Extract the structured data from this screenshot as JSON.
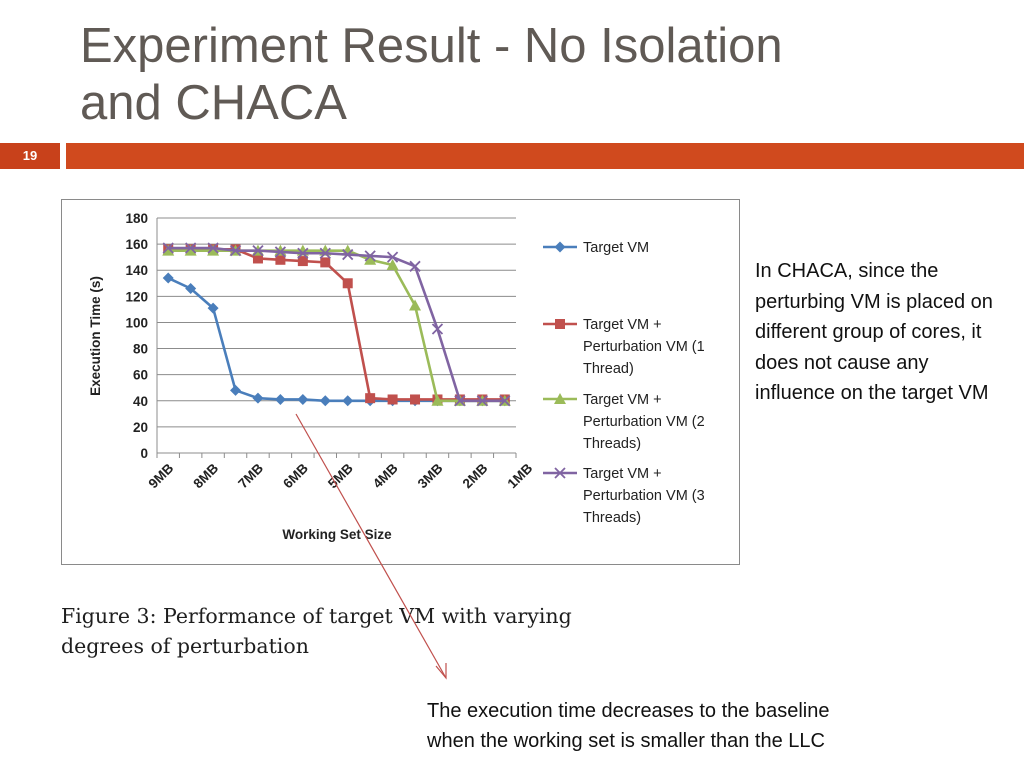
{
  "slide": {
    "title_lines": [
      "Experiment Result - No Isolation",
      "and CHACA"
    ],
    "slide_number": "19",
    "accent_color": "#d04a1e"
  },
  "figure_caption": {
    "lines": [
      "Figure 3:  Performance of target VM with varying",
      "degrees of perturbation"
    ]
  },
  "notes": {
    "right_text": "In CHACA, since the perturbing VM is placed on different group of cores, it does not cause any influence on the target VM",
    "bottom_lines": [
      "The execution time decreases to the baseline",
      "when the working set is smaller than the LLC"
    ]
  },
  "chart_data": {
    "type": "line",
    "title": "",
    "xlabel": "Working Set Size",
    "ylabel": "Execution Time (s)",
    "ylim": [
      0,
      180
    ],
    "yticks": [
      0,
      20,
      40,
      60,
      80,
      100,
      120,
      140,
      160,
      180
    ],
    "grid": true,
    "legend_position": "right",
    "x_tick_labels": [
      "9MB",
      "8MB",
      "7MB",
      "6MB",
      "5MB",
      "4MB",
      "3MB",
      "2MB",
      "1MB"
    ],
    "x_points": 16,
    "series": [
      {
        "name": "Target VM",
        "legend_lines": [
          "Target VM"
        ],
        "color": "#4a7ebb",
        "marker": "diamond",
        "values": [
          134,
          126,
          111,
          48,
          42,
          41,
          41,
          40,
          40,
          40,
          40,
          40,
          40,
          40,
          40,
          40
        ]
      },
      {
        "name": "Target VM + Perturbation VM (1 Thread)",
        "legend_lines": [
          "Target VM +",
          "Perturbation VM (1",
          "Thread)"
        ],
        "color": "#c0504d",
        "marker": "square",
        "values": [
          156,
          156,
          156,
          156,
          149,
          148,
          147,
          146,
          130,
          42,
          41,
          41,
          41,
          41,
          41,
          41
        ]
      },
      {
        "name": "Target VM + Perturbation VM (2 Threads)",
        "legend_lines": [
          "Target VM +",
          "Perturbation VM (2",
          "Threads)"
        ],
        "color": "#9bbb59",
        "marker": "triangle",
        "values": [
          155,
          155,
          155,
          155,
          155,
          155,
          155,
          155,
          155,
          148,
          144,
          113,
          40,
          40,
          40,
          40
        ]
      },
      {
        "name": "Target VM + Perturbation VM (3 Threads)",
        "legend_lines": [
          "Target VM +",
          "Perturbation VM (3",
          "Threads)"
        ],
        "color": "#8064a2",
        "marker": "x",
        "values": [
          157,
          157,
          157,
          155,
          155,
          154,
          153,
          153,
          152,
          151,
          150,
          143,
          95,
          40,
          40,
          40
        ]
      }
    ]
  }
}
